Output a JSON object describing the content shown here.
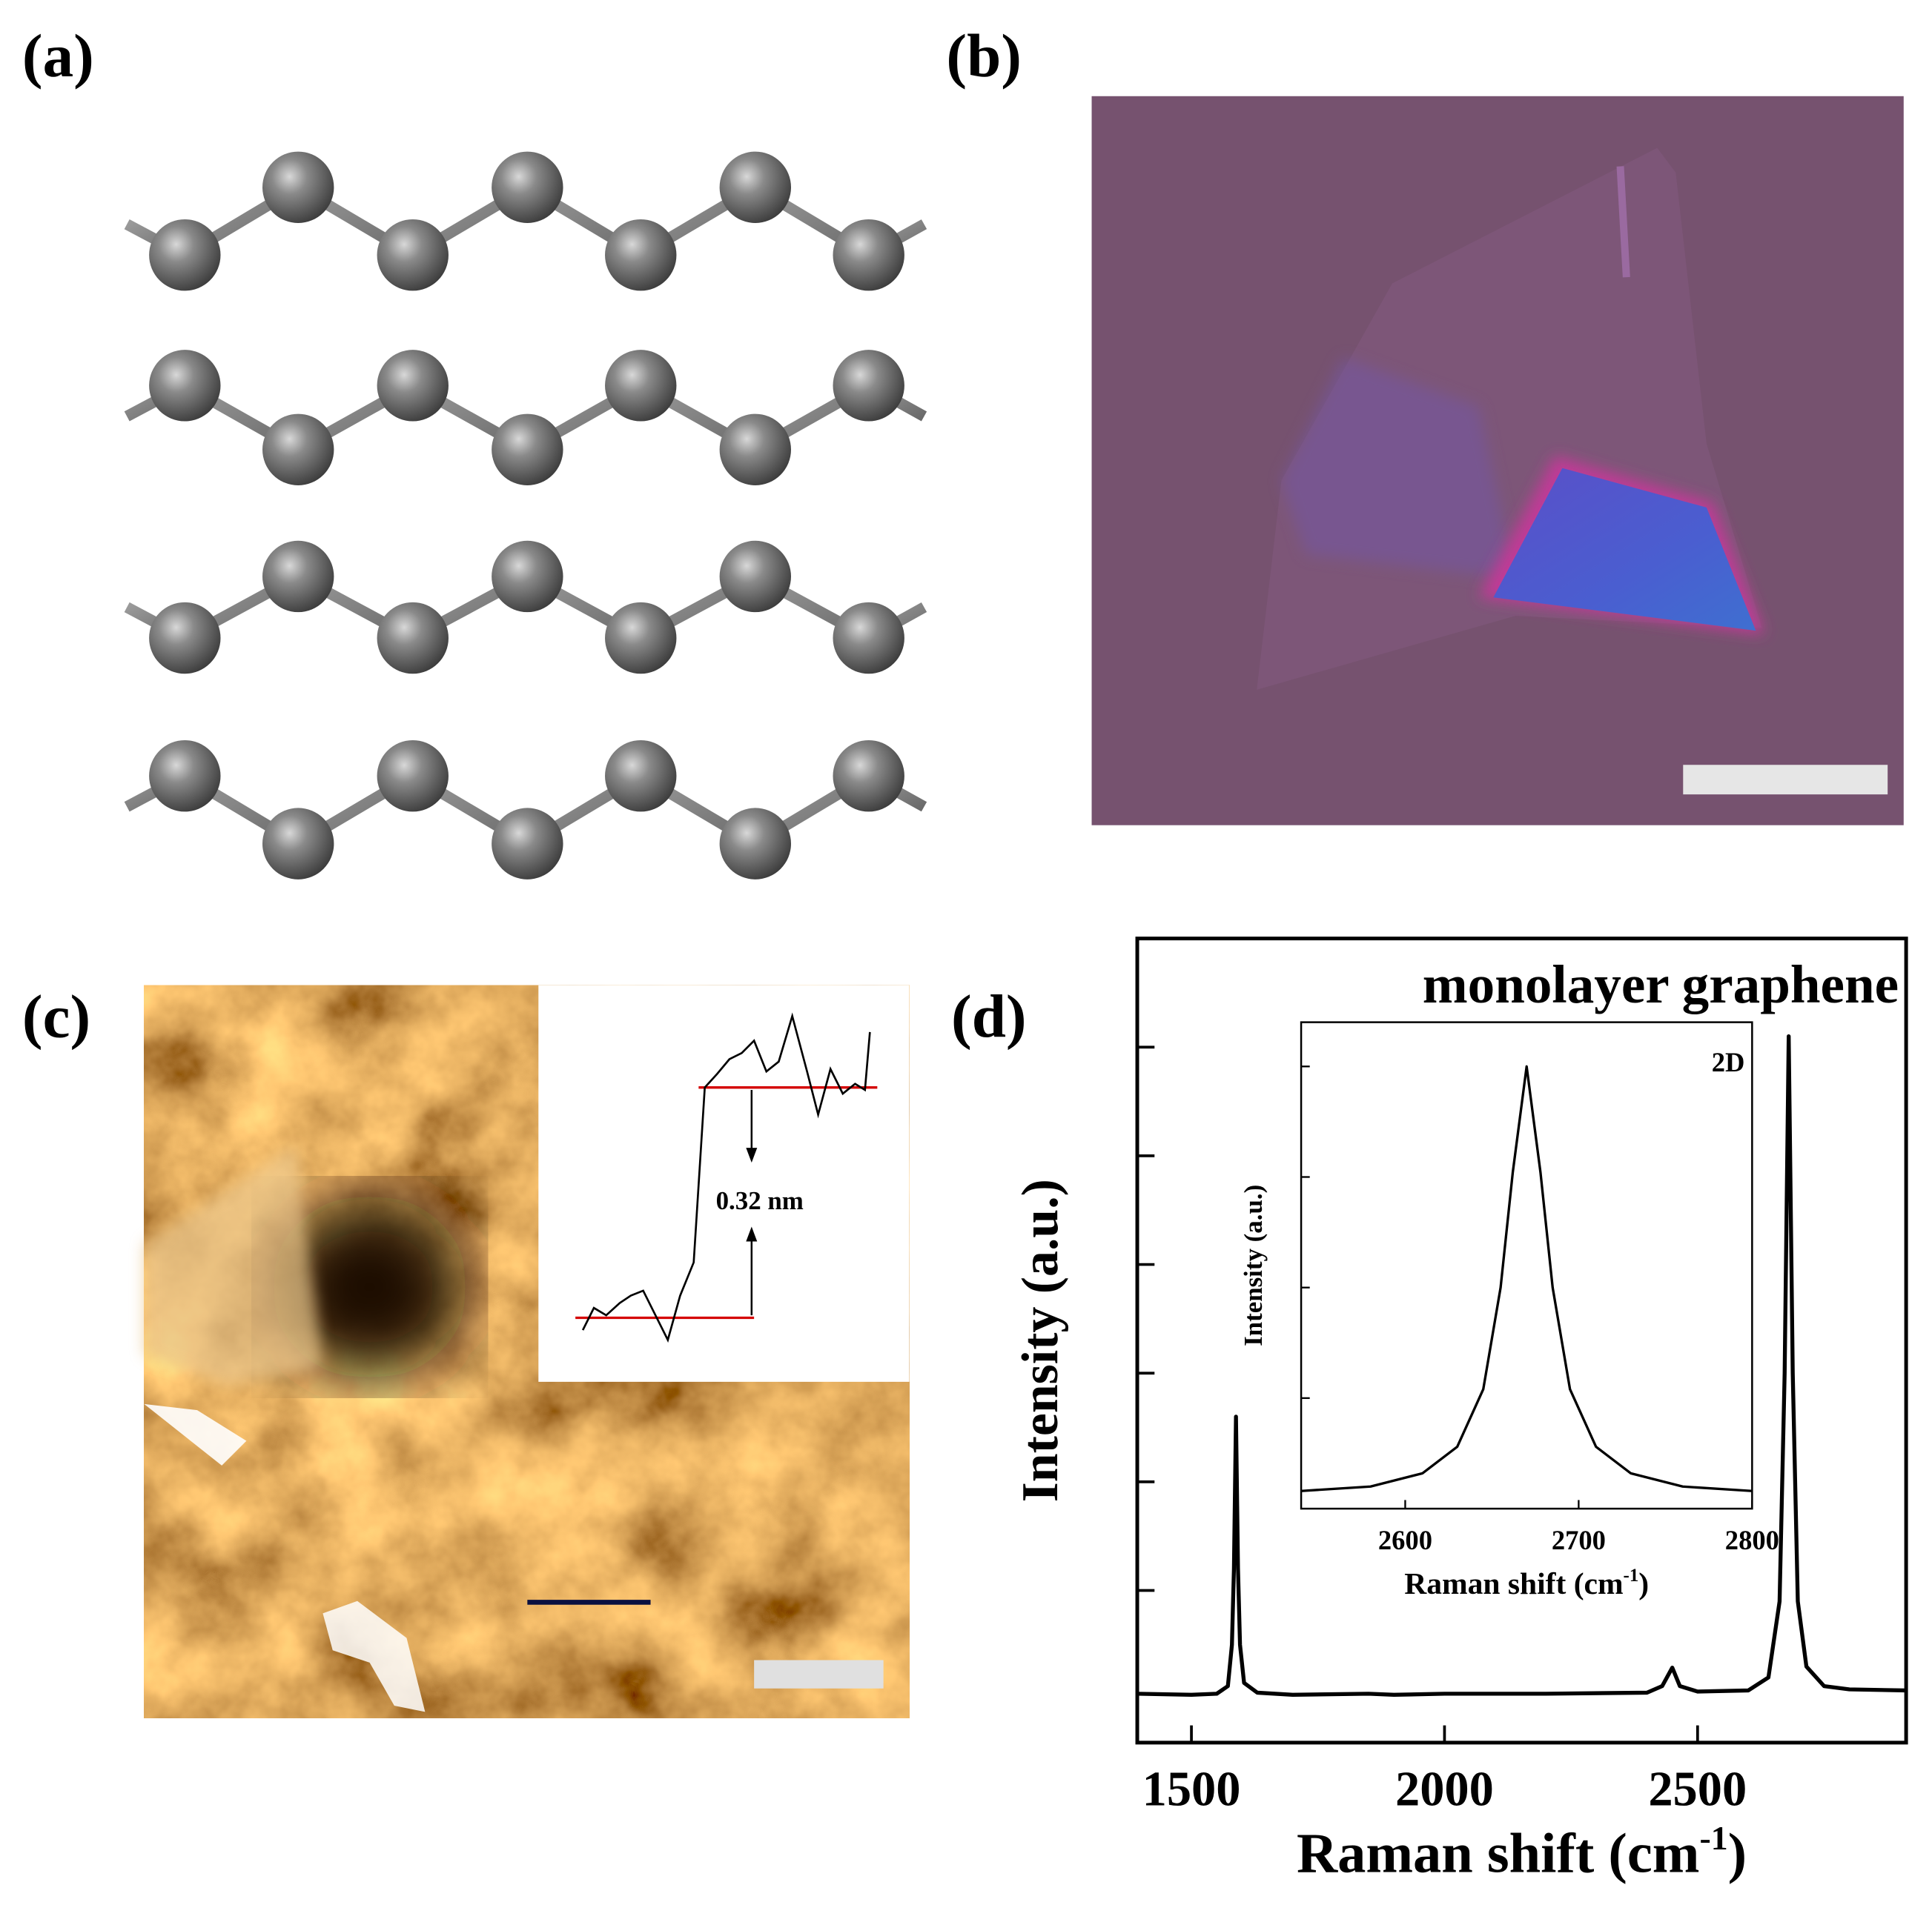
{
  "panels": {
    "a": {
      "label": "(a)"
    },
    "b": {
      "label": "(b)"
    },
    "c": {
      "label": "(c)",
      "annotation": "0.32 nm"
    },
    "d": {
      "label": "(d)"
    }
  },
  "chart_data": [
    {
      "type": "line",
      "title": "monolayer graphene",
      "x_label": {
        "text": "Raman shift (cm",
        "sup": "-1",
        "tail": ")"
      },
      "y_label": "Intensity (a.u.)",
      "x": [
        1393,
        1500,
        1550,
        1572,
        1580,
        1584,
        1588,
        1592,
        1596,
        1604,
        1630,
        1700,
        1850,
        1900,
        2000,
        2200,
        2400,
        2430,
        2450,
        2465,
        2500,
        2600,
        2640,
        2662,
        2672,
        2680,
        2688,
        2698,
        2715,
        2750,
        2800,
        2912
      ],
      "values": [
        0.05,
        0.04,
        0.05,
        0.12,
        0.5,
        1.2,
        2.6,
        1.2,
        0.5,
        0.15,
        0.06,
        0.04,
        0.05,
        0.04,
        0.05,
        0.05,
        0.06,
        0.12,
        0.29,
        0.12,
        0.07,
        0.08,
        0.2,
        0.9,
        3.0,
        6.1,
        3.0,
        0.9,
        0.3,
        0.12,
        0.09,
        0.08
      ],
      "color": "#000000",
      "xlim": [
        1393,
        2912
      ],
      "ylim": [
        -0.4,
        7
      ],
      "xticks": [
        1500,
        2000,
        2500
      ],
      "yticks": [
        1,
        2,
        3,
        4,
        5,
        6
      ]
    },
    {
      "type": "line",
      "annotation": "2D",
      "x_label": {
        "text": "Raman shift (cm",
        "sup": "-1",
        "tail": ")"
      },
      "y_label": "Intensity (a.u.)",
      "x": [
        2540,
        2580,
        2610,
        2630,
        2645,
        2655,
        2662,
        2670,
        2678,
        2685,
        2695,
        2710,
        2730,
        2760,
        2800
      ],
      "values": [
        0.04,
        0.05,
        0.08,
        0.14,
        0.27,
        0.5,
        0.76,
        1.0,
        0.76,
        0.5,
        0.27,
        0.14,
        0.08,
        0.05,
        0.04
      ],
      "color": "#000000",
      "xlim": [
        2540,
        2800
      ],
      "ylim": [
        0,
        1.1
      ],
      "xticks": [
        2600,
        2700,
        2800
      ],
      "yticks": [
        0.25,
        0.5,
        0.75,
        1.0
      ]
    }
  ]
}
